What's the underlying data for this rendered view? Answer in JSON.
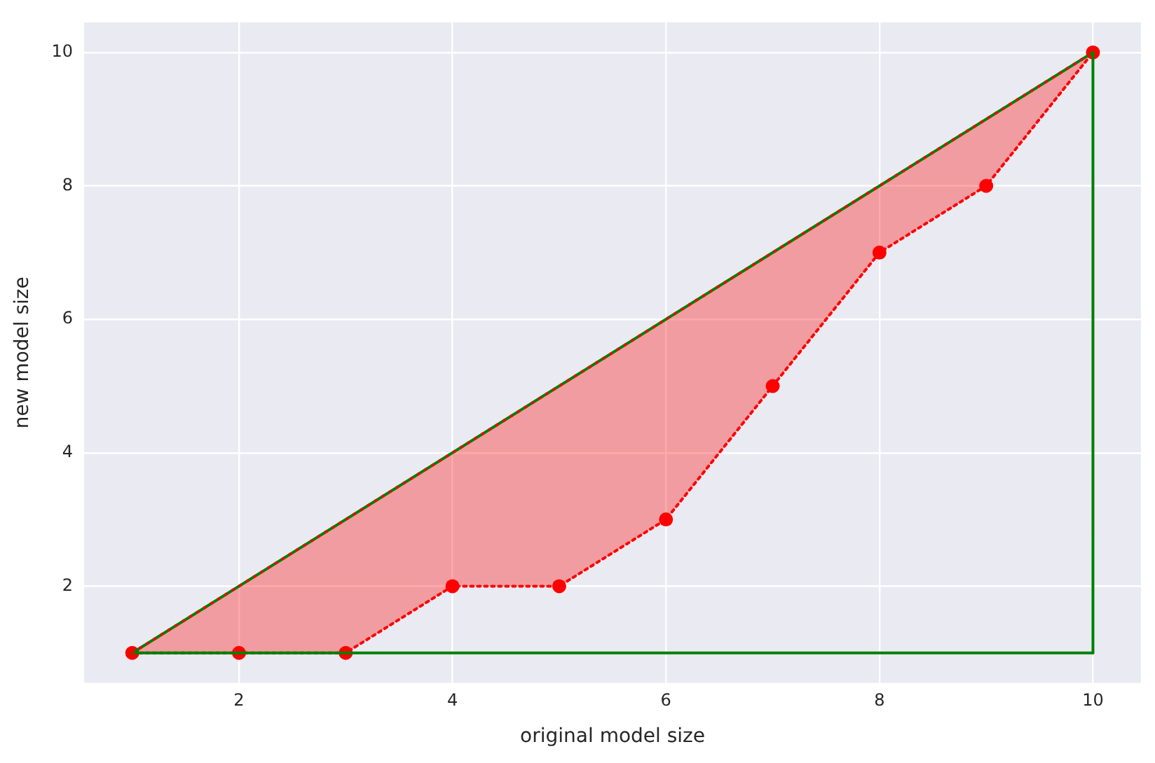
{
  "chart_data": {
    "type": "line",
    "xlabel": "original model size",
    "ylabel": "new model size",
    "xlim": [
      0.55,
      10.45
    ],
    "ylim": [
      0.55,
      10.45
    ],
    "xticks": [
      2,
      4,
      6,
      8,
      10
    ],
    "yticks": [
      2,
      4,
      6,
      8,
      10
    ],
    "grid": true,
    "legend": false,
    "series": [
      {
        "color": "#008000",
        "x": [
          1,
          10
        ],
        "values": [
          1,
          10
        ],
        "line_style": "solid",
        "marker": "none"
      },
      {
        "color": "#008000",
        "x": [
          10,
          10
        ],
        "values": [
          10,
          1
        ],
        "line_style": "solid",
        "marker": "none"
      },
      {
        "color": "#008000",
        "x": [
          1,
          10
        ],
        "values": [
          1,
          1
        ],
        "line_style": "solid",
        "marker": "none"
      },
      {
        "color": "#ff0000",
        "x": [
          1,
          2,
          3,
          4,
          5,
          6,
          7,
          8,
          9,
          10
        ],
        "values": [
          1,
          1,
          1,
          2,
          2,
          3,
          5,
          7,
          8,
          10
        ],
        "lower": [
          1,
          1,
          1,
          2,
          2,
          3,
          5,
          7,
          8,
          10
        ],
        "upper": [
          1,
          2,
          3,
          4,
          5,
          6,
          7,
          8,
          9,
          10
        ],
        "line_style": "dotted",
        "marker": "circle"
      }
    ]
  }
}
